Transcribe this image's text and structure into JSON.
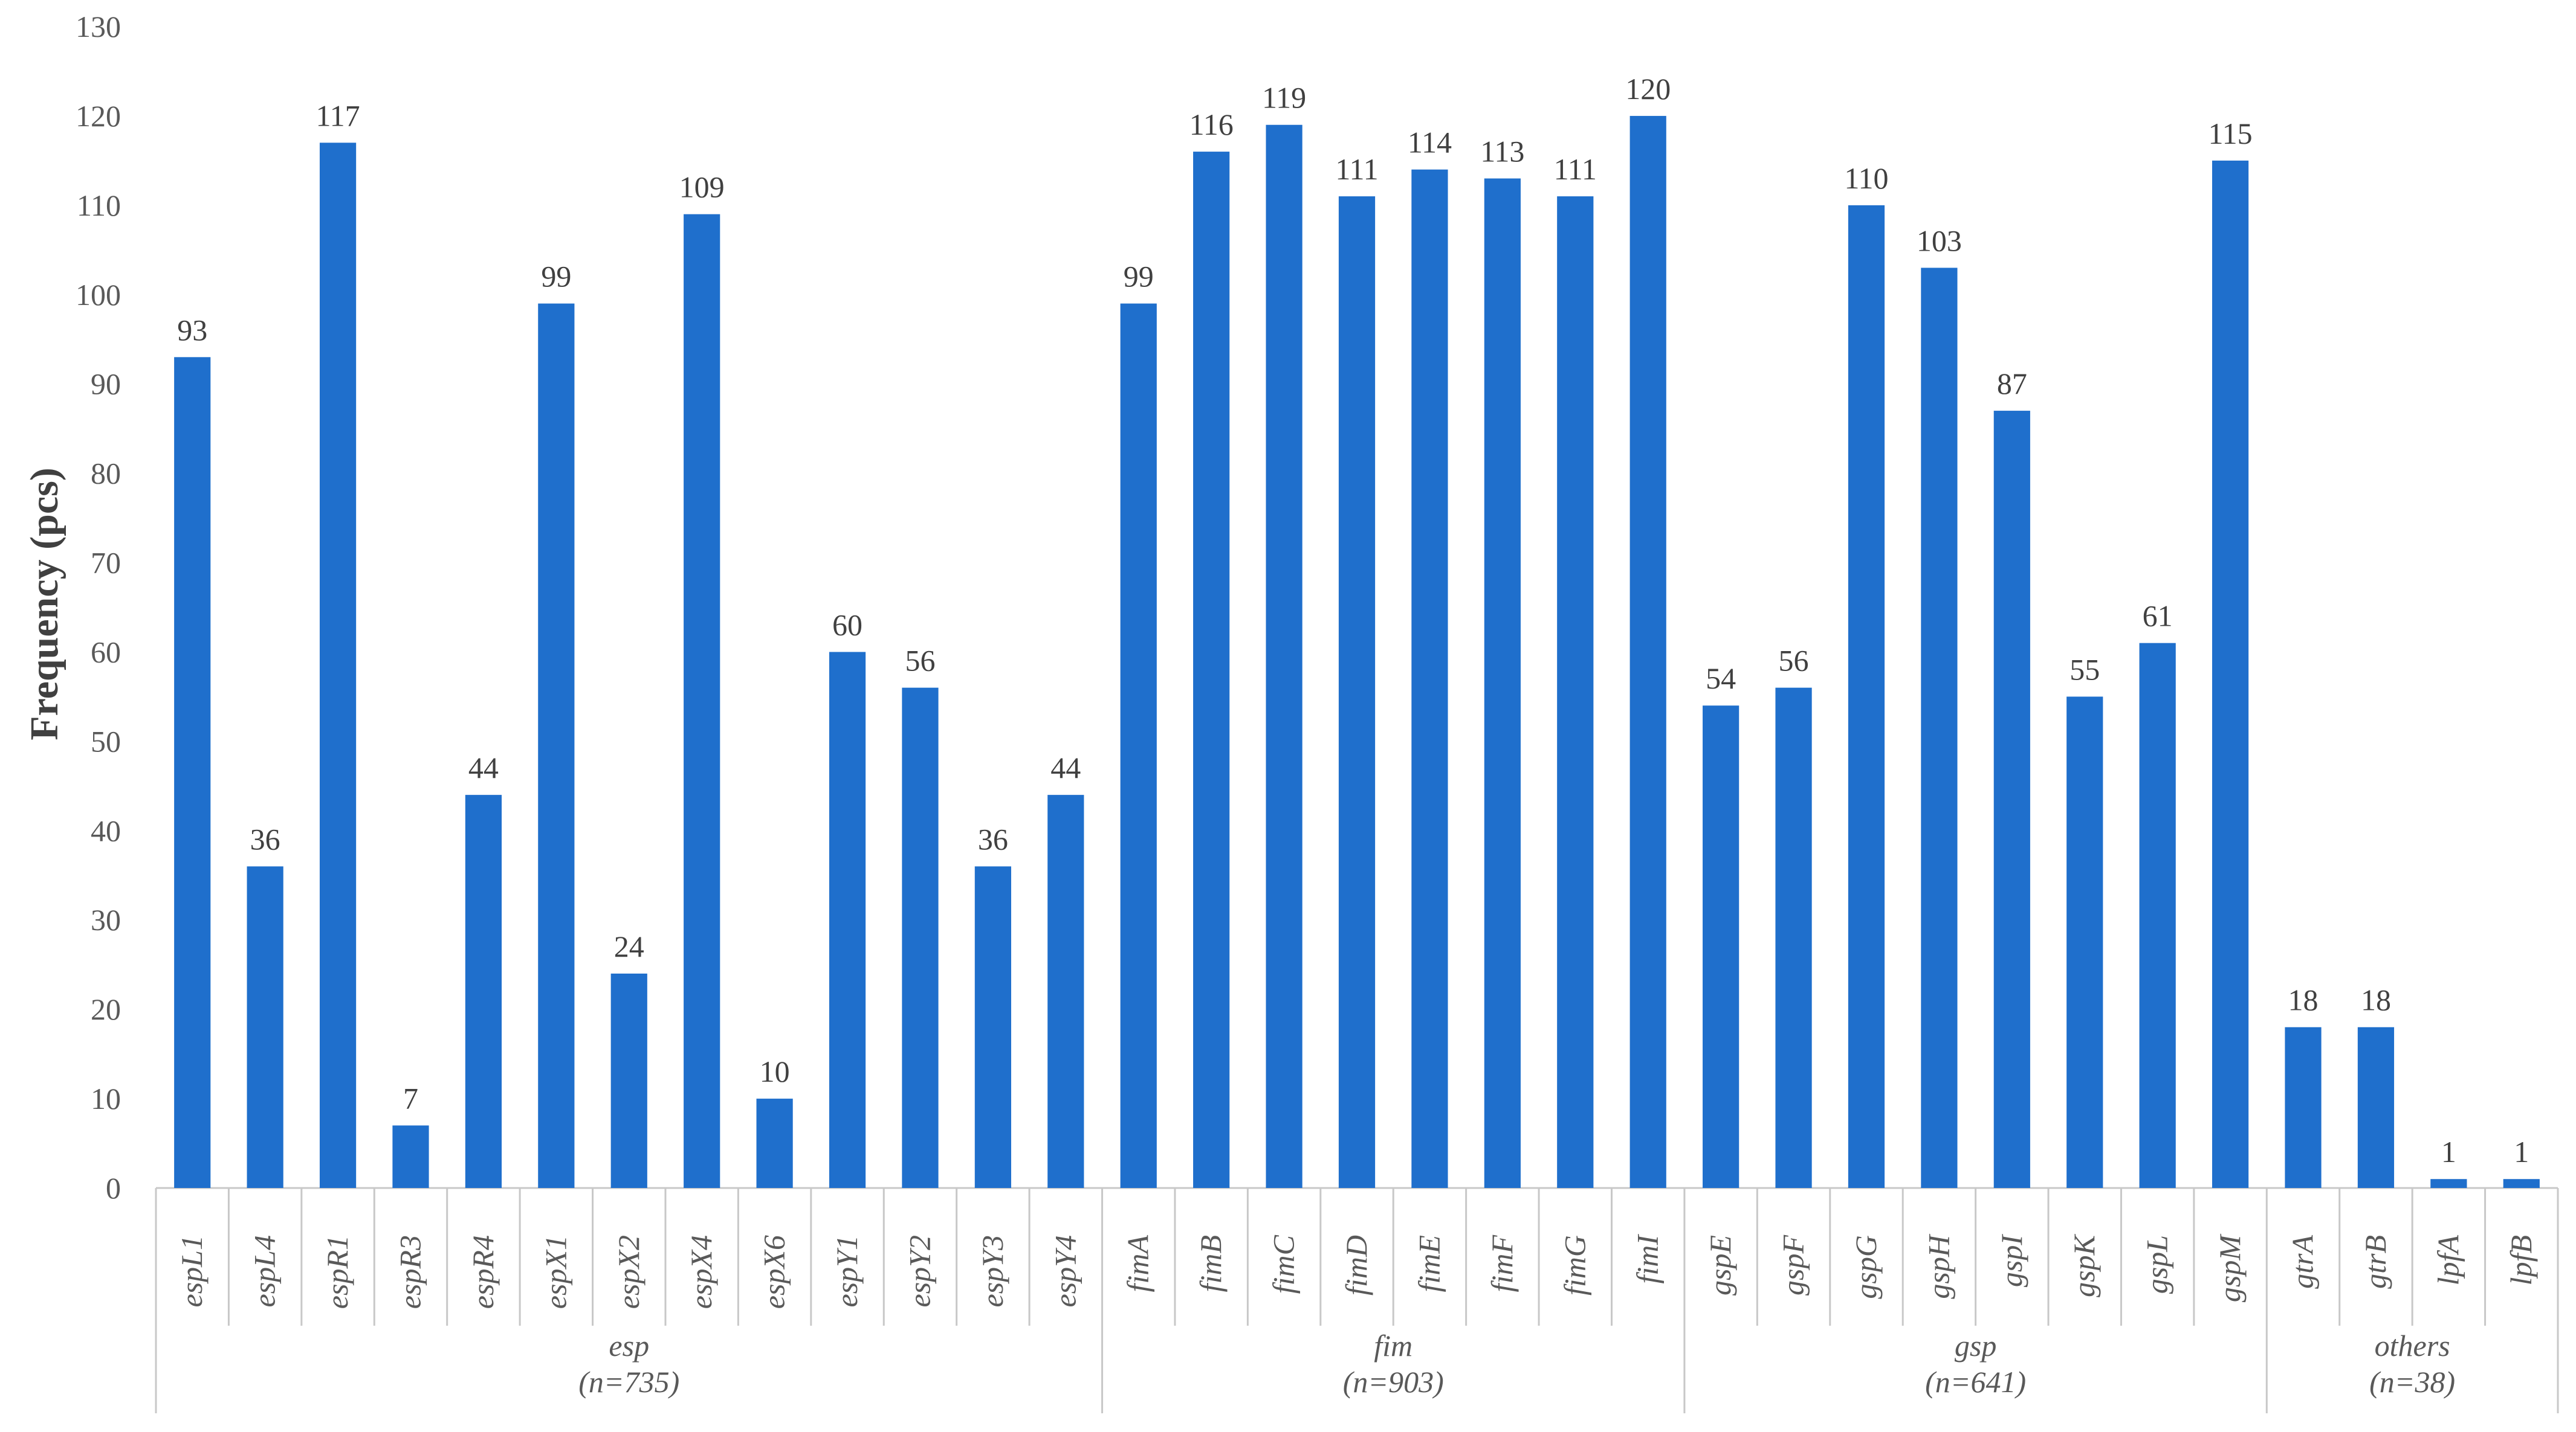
{
  "chart_data": {
    "type": "bar",
    "title": "",
    "ylabel": "Frequency (pcs)",
    "ylim": [
      0,
      130
    ],
    "yticks": [
      0,
      10,
      20,
      30,
      40,
      50,
      60,
      70,
      80,
      90,
      100,
      110,
      120,
      130
    ],
    "grid": false,
    "legend": "none",
    "bar_color": "#1f6fcc",
    "categories": [
      "espL1",
      "espL4",
      "espR1",
      "espR3",
      "espR4",
      "espX1",
      "espX2",
      "espX4",
      "espX6",
      "espY1",
      "espY2",
      "espY3",
      "espY4",
      "fimA",
      "fimB",
      "fimC",
      "fimD",
      "fimE",
      "fimF",
      "fimG",
      "fimI",
      "gspE",
      "gspF",
      "gspG",
      "gspH",
      "gspI",
      "gspK",
      "gspL",
      "gspM",
      "gtrA",
      "gtrB",
      "lpfA",
      "lpfB"
    ],
    "values": [
      93,
      36,
      117,
      7,
      44,
      99,
      24,
      109,
      10,
      60,
      56,
      36,
      44,
      99,
      116,
      119,
      111,
      114,
      113,
      111,
      120,
      54,
      56,
      110,
      103,
      87,
      55,
      61,
      115,
      18,
      18,
      1,
      1
    ],
    "data_labels": [
      "93",
      "36",
      "117",
      "7",
      "44",
      "99",
      "24",
      "109",
      "10",
      "60",
      "56",
      "36",
      "44",
      "99",
      "116",
      "119",
      "111",
      "114",
      "113",
      "111",
      "120",
      "54",
      "56",
      "110",
      "103",
      "87",
      "55",
      "61",
      "115",
      "18",
      "18",
      "1",
      "1"
    ],
    "groups": [
      {
        "name": "esp",
        "n": "(n=735)",
        "count": 13
      },
      {
        "name": "fim",
        "n": "(n=903)",
        "count": 8
      },
      {
        "name": "gsp",
        "n": "(n=641)",
        "count": 8
      },
      {
        "name": "others",
        "n": "(n=38)",
        "count": 4
      }
    ]
  }
}
